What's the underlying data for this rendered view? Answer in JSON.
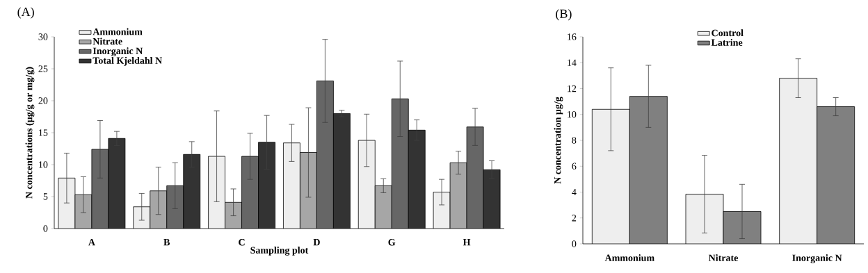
{
  "chart_data": [
    {
      "type": "bar",
      "title": "(A)",
      "xlabel": "Sampling plot",
      "ylabel": "N concentrations (µg/g or mg/g)",
      "categories": [
        "A",
        "B",
        "C",
        "D",
        "G",
        "H"
      ],
      "ylim": [
        0,
        30
      ],
      "yticks": [
        0,
        5,
        10,
        15,
        20,
        25,
        30
      ],
      "legend": "top left",
      "series": [
        {
          "name": "Ammonium",
          "color": "#eeeeee",
          "values": [
            7.9,
            3.4,
            11.3,
            13.4,
            13.8,
            5.7
          ],
          "errors": [
            3.9,
            2.1,
            7.1,
            2.9,
            4.1,
            2.0
          ]
        },
        {
          "name": "Nitrate",
          "color": "#a6a6a6",
          "values": [
            5.3,
            5.9,
            4.1,
            11.9,
            6.7,
            10.3
          ],
          "errors": [
            2.8,
            3.7,
            2.1,
            7.0,
            1.1,
            1.8
          ]
        },
        {
          "name": "Inorganic N",
          "color": "#666666",
          "values": [
            12.4,
            6.7,
            11.3,
            23.1,
            20.3,
            15.9
          ],
          "errors": [
            4.5,
            3.6,
            3.6,
            6.5,
            5.9,
            2.9
          ]
        },
        {
          "name": "Total Kjeldahl N",
          "color": "#333333",
          "values": [
            14.1,
            11.6,
            13.5,
            18.0,
            15.4,
            9.2
          ],
          "errors": [
            1.1,
            2.0,
            4.2,
            0.5,
            1.6,
            1.4
          ]
        }
      ]
    },
    {
      "type": "bar",
      "title": "(B)",
      "ylabel": "N concentration µg/g",
      "categories": [
        "Ammonium",
        "Nitrate",
        "Inorganic N"
      ],
      "ylim": [
        0,
        16
      ],
      "yticks": [
        0,
        2,
        4,
        6,
        8,
        10,
        12,
        14,
        16
      ],
      "legend": "top",
      "series": [
        {
          "name": "Control",
          "color": "#eeeeee",
          "values": [
            10.4,
            3.84,
            12.8
          ],
          "errors": [
            3.2,
            3.0,
            1.5
          ]
        },
        {
          "name": "Latrine",
          "color": "#808080",
          "values": [
            11.4,
            2.5,
            10.6
          ],
          "errors": [
            2.4,
            2.1,
            0.7
          ]
        }
      ]
    }
  ]
}
